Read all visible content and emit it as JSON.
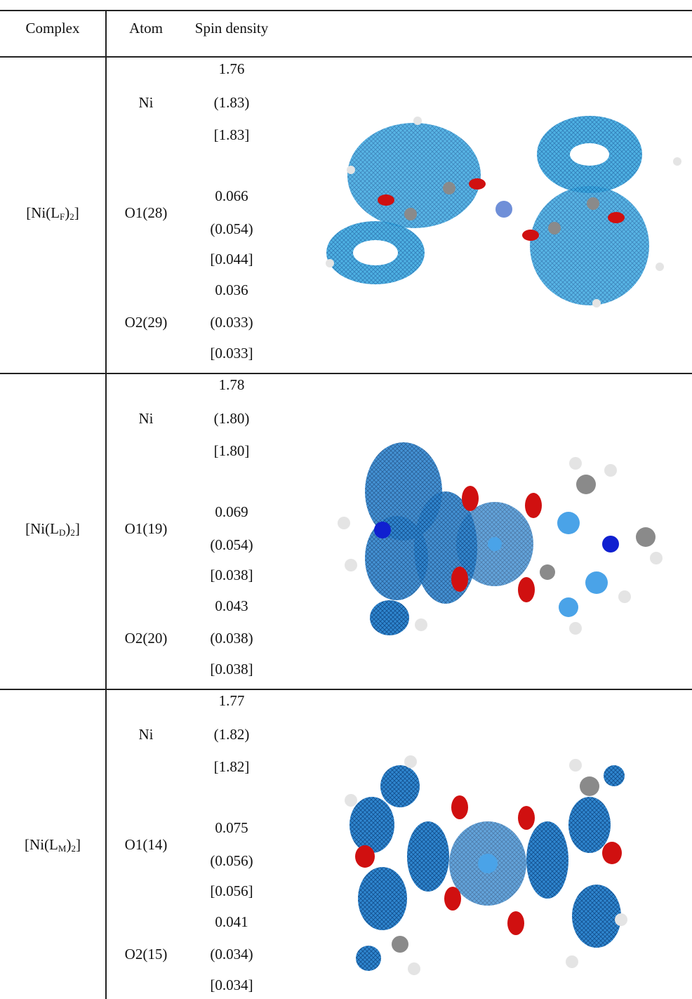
{
  "headers": {
    "complex": "Complex",
    "atom": "Atom",
    "spin": "Spin density"
  },
  "rows": [
    {
      "complex": {
        "pre": "[Ni(L",
        "sub": "F",
        "post": ")",
        "sub2": "2",
        "close": "]"
      },
      "atoms": [
        "Ni",
        "O1(28)",
        "O2(29)"
      ],
      "values": [
        [
          "1.76",
          "(1.83)",
          "[1.83]"
        ],
        [
          "0.066",
          "(0.054)",
          "[0.044]"
        ],
        [
          "0.036",
          "(0.033)",
          "[0.033]"
        ]
      ]
    },
    {
      "complex": {
        "pre": "[Ni(L",
        "sub": "D",
        "post": ")",
        "sub2": "2",
        "close": "]"
      },
      "atoms": [
        "Ni",
        "O1(19)",
        "O2(20)"
      ],
      "values": [
        [
          "1.78",
          "(1.80)",
          "[1.80]"
        ],
        [
          "0.069",
          "(0.054)",
          "[0.038]"
        ],
        [
          "0.043",
          "(0.038)",
          "[0.038]"
        ]
      ]
    },
    {
      "complex": {
        "pre": "[Ni(L",
        "sub": "M",
        "post": ")",
        "sub2": "2",
        "close": "]"
      },
      "atoms": [
        "Ni",
        "O1(14)",
        "O2(15)"
      ],
      "values": [
        [
          "1.77",
          "(1.82)",
          "[1.82]"
        ],
        [
          "0.075",
          "(0.056)",
          "[0.056]"
        ],
        [
          "0.041",
          "(0.034)",
          "[0.034]"
        ]
      ]
    }
  ],
  "colors": {
    "mesh": "#1f8fd6",
    "atom_carbon": "#8a8a8a",
    "atom_oxygen": "#d01010",
    "atom_nitrogen": "#1020d0",
    "atom_hydrogen": "#e4e4e4",
    "atom_nickel": "#6f8fd8"
  }
}
